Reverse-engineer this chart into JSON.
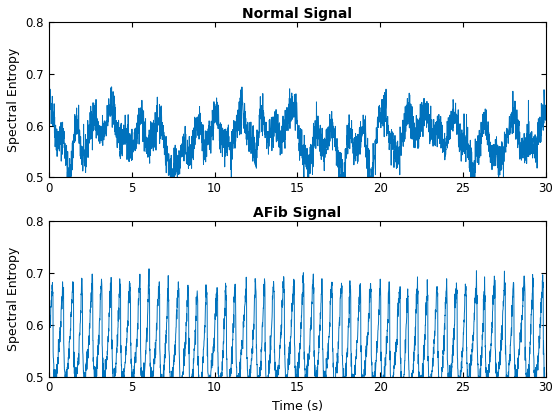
{
  "title_top": "Normal Signal",
  "title_bottom": "AFib Signal",
  "xlabel": "Time (s)",
  "ylabel": "Spectral Entropy",
  "xlim": [
    0,
    30
  ],
  "ylim": [
    0.5,
    0.8
  ],
  "xticks": [
    0,
    5,
    10,
    15,
    20,
    25,
    30
  ],
  "yticks": [
    0.5,
    0.6,
    0.7,
    0.8
  ],
  "line_color": "#0072BD",
  "line_width": 0.7,
  "bg_color": "#FFFFFF",
  "fig_facecolor": "#F0F0F0",
  "n_points": 3000
}
